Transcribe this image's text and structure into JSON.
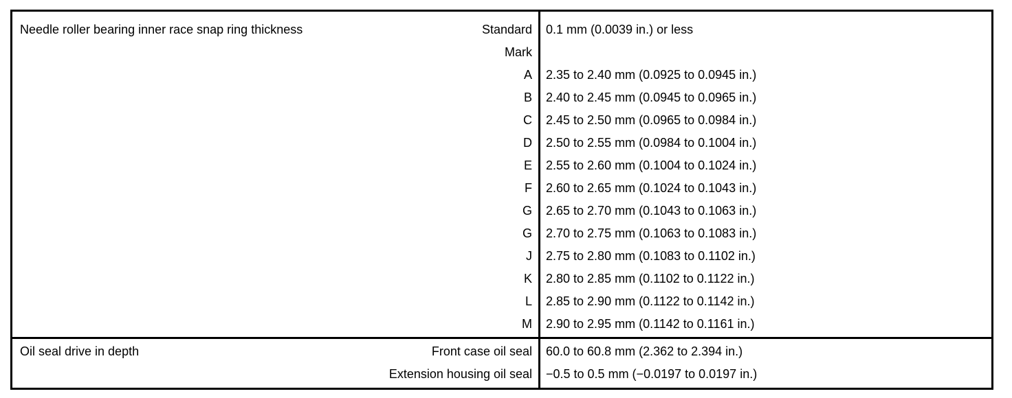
{
  "colors": {
    "border": "#000000",
    "text": "#000000",
    "background": "#ffffff"
  },
  "table": {
    "sections": [
      {
        "label": "Needle roller bearing inner race snap ring thickness",
        "rows": [
          {
            "sub": "Standard",
            "value": "0.1 mm (0.0039 in.) or less"
          },
          {
            "sub": "Mark",
            "value": ""
          },
          {
            "sub": "A",
            "value": "2.35 to 2.40 mm (0.0925 to 0.0945 in.)"
          },
          {
            "sub": "B",
            "value": "2.40 to 2.45 mm (0.0945 to 0.0965 in.)"
          },
          {
            "sub": "C",
            "value": "2.45 to 2.50 mm (0.0965 to 0.0984 in.)"
          },
          {
            "sub": "D",
            "value": "2.50 to 2.55 mm (0.0984 to 0.1004 in.)"
          },
          {
            "sub": "E",
            "value": "2.55 to 2.60 mm (0.1004 to 0.1024 in.)"
          },
          {
            "sub": "F",
            "value": "2.60 to 2.65 mm (0.1024 to 0.1043 in.)"
          },
          {
            "sub": "G",
            "value": "2.65 to 2.70 mm (0.1043 to 0.1063 in.)"
          },
          {
            "sub": "G",
            "value": "2.70 to 2.75 mm (0.1063 to 0.1083 in.)"
          },
          {
            "sub": "J",
            "value": "2.75 to 2.80 mm (0.1083 to 0.1102 in.)"
          },
          {
            "sub": "K",
            "value": "2.80 to 2.85 mm (0.1102 to 0.1122 in.)"
          },
          {
            "sub": "L",
            "value": "2.85 to 2.90 mm (0.1122 to 0.1142 in.)"
          },
          {
            "sub": "M",
            "value": "2.90 to 2.95 mm (0.1142 to 0.1161 in.)"
          }
        ]
      },
      {
        "label": "Oil seal drive in depth",
        "rows": [
          {
            "sub": "Front case oil seal",
            "value": "60.0 to 60.8 mm (2.362 to 2.394 in.)"
          },
          {
            "sub": "Extension housing oil seal",
            "value": "−0.5 to 0.5 mm (−0.0197 to 0.0197 in.)"
          }
        ]
      }
    ]
  }
}
